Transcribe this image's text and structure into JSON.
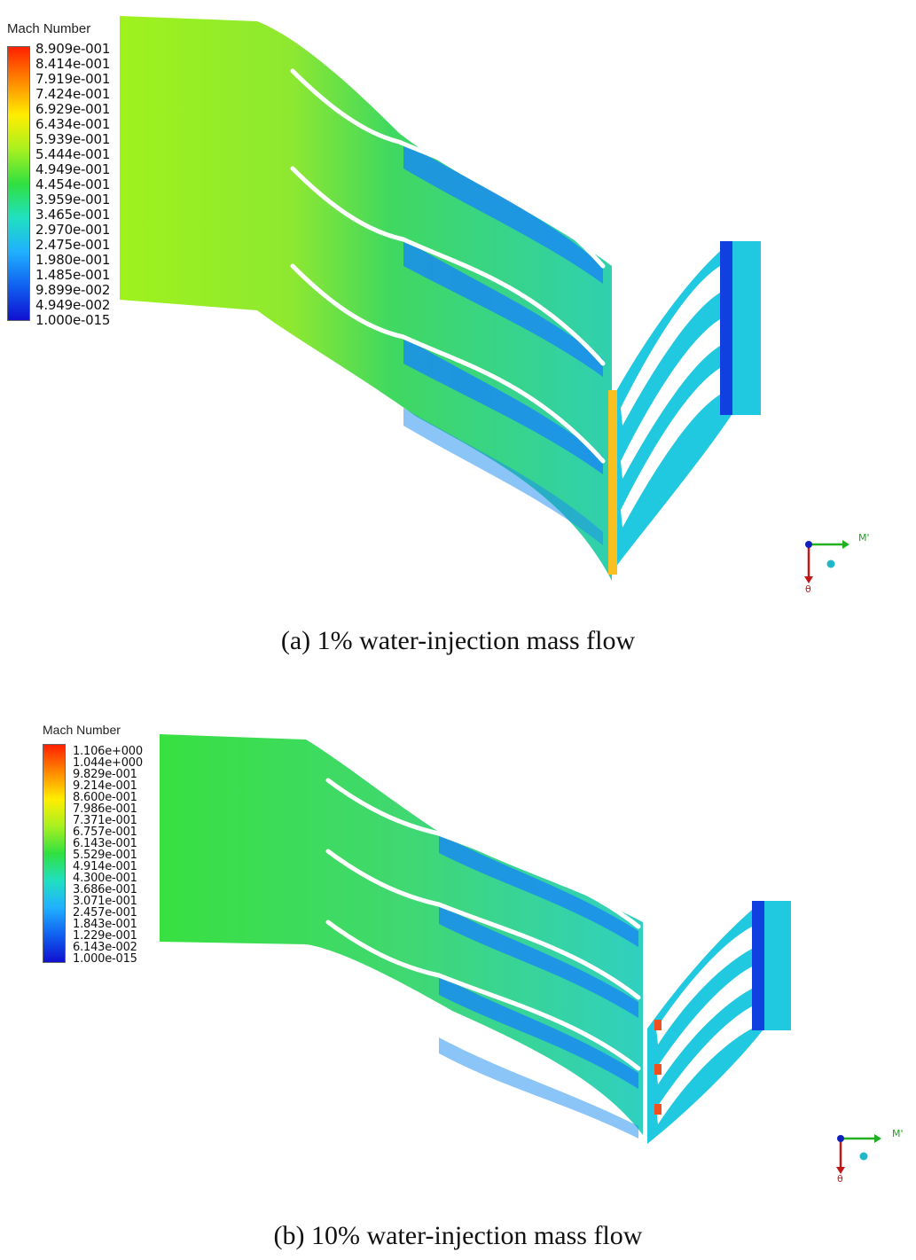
{
  "panels": [
    {
      "id": "a",
      "legend": {
        "title": "Mach Number",
        "ticks": [
          "8.909e-001",
          "8.414e-001",
          "7.919e-001",
          "7.424e-001",
          "6.929e-001",
          "6.434e-001",
          "5.939e-001",
          "5.444e-001",
          "4.949e-001",
          "4.454e-001",
          "3.959e-001",
          "3.465e-001",
          "2.970e-001",
          "2.475e-001",
          "1.980e-001",
          "1.485e-001",
          "9.899e-002",
          "4.949e-002",
          "1.000e-015"
        ]
      },
      "caption": "(a)   1% water-injection mass flow",
      "axes": {
        "x_label": "M'",
        "y_label": "θ"
      }
    },
    {
      "id": "b",
      "legend": {
        "title": "Mach Number",
        "ticks": [
          "1.106e+000",
          "1.044e+000",
          "9.829e-001",
          "9.214e-001",
          "8.600e-001",
          "7.986e-001",
          "7.371e-001",
          "6.757e-001",
          "6.143e-001",
          "5.529e-001",
          "4.914e-001",
          "4.300e-001",
          "3.686e-001",
          "3.071e-001",
          "2.457e-001",
          "1.843e-001",
          "1.229e-001",
          "6.143e-002",
          "1.000e-015"
        ]
      },
      "caption": "(b)   10% water-injection mass flow",
      "axes": {
        "x_label": "M'",
        "y_label": "θ"
      }
    }
  ],
  "colors": {
    "colormap": [
      "#ff2000",
      "#ff8800",
      "#ffee00",
      "#a8f020",
      "#30e040",
      "#20e0c0",
      "#20b0ff",
      "#1060f0",
      "#1010d0"
    ]
  }
}
